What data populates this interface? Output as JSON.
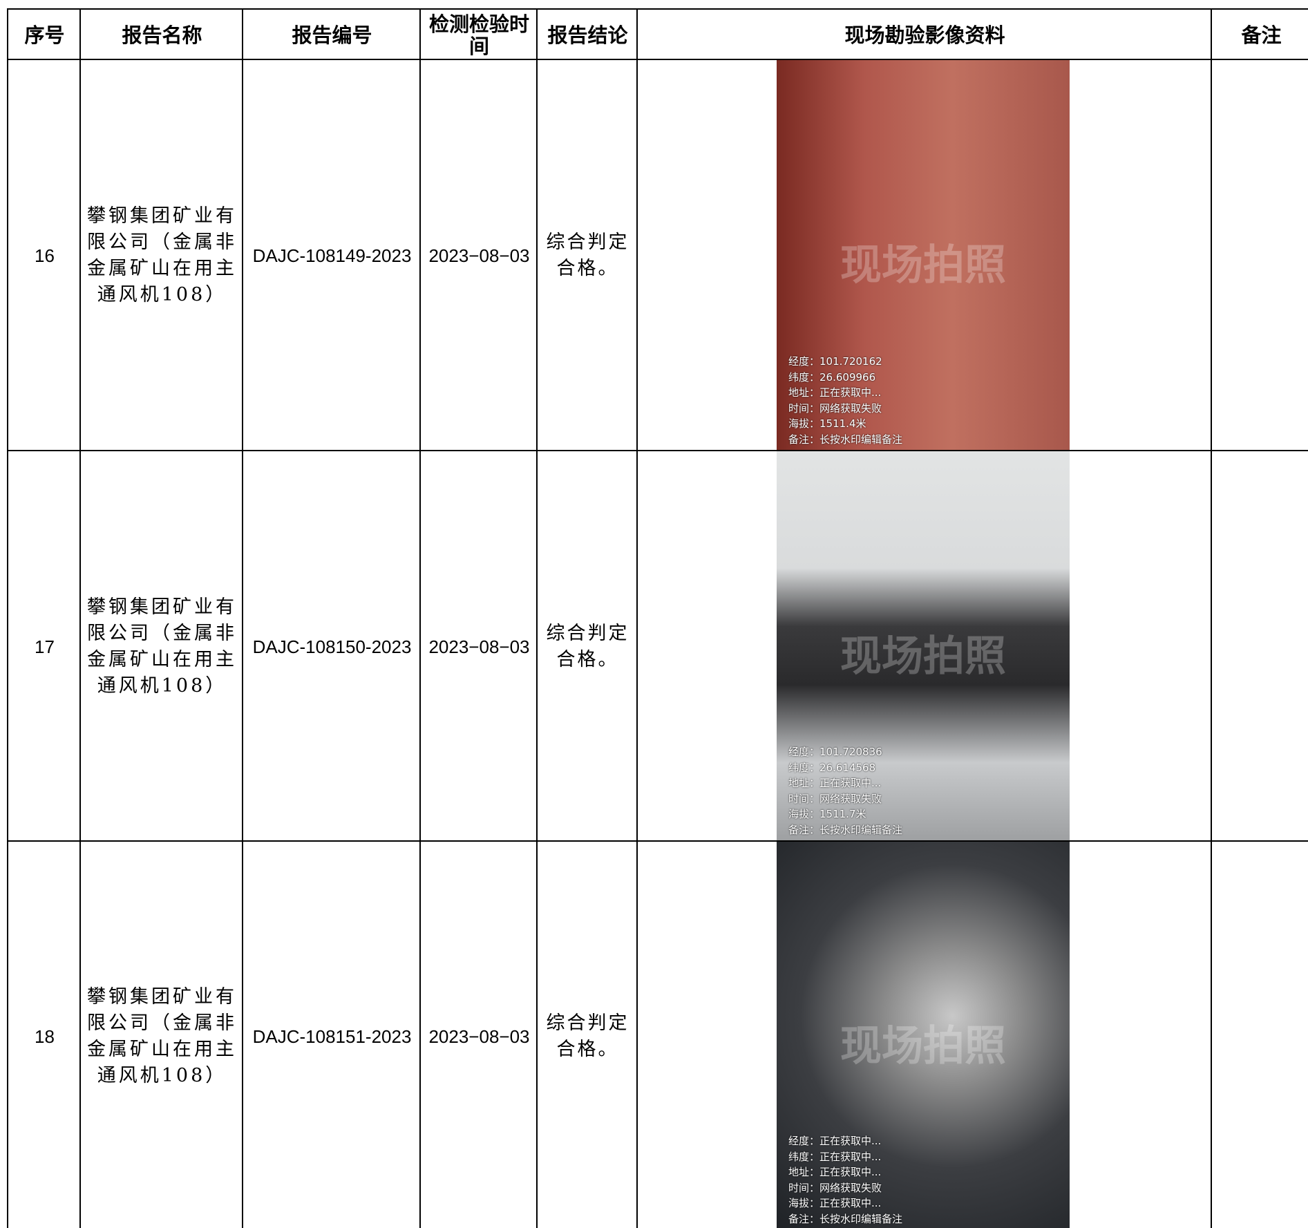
{
  "table": {
    "header": [
      "序号",
      "报告名称",
      "报告编号",
      "检测检验时间",
      "报告结论",
      "现场勘验影像资料",
      "备注"
    ],
    "rows": [
      {
        "cells": [
          "16",
          "攀钢集团矿业有限公司（金属非金属矿山在用主通风机108）",
          "DAJC-108149-2023",
          "2023−08−03",
          "综合判定合格。",
          "",
          ""
        ],
        "photo": {
          "watermark": "现场拍照",
          "lines": [
            "经度：101.720162",
            "纬度：26.609966",
            "地址：正在获取中...",
            "时间：网络获取失败",
            "海拔：1511.4米",
            "备注：长按水印编辑备注"
          ]
        }
      },
      {
        "cells": [
          "17",
          "攀钢集团矿业有限公司（金属非金属矿山在用主通风机108）",
          "DAJC-108150-2023",
          "2023−08−03",
          "综合判定合格。",
          "",
          ""
        ],
        "photo": {
          "watermark": "现场拍照",
          "lines": [
            "经度：101.720836",
            "纬度：26.614568",
            "地址：正在获取中...",
            "时间：网络获取失败",
            "海拔：1511.7米",
            "备注：长按水印编辑备注"
          ]
        }
      },
      {
        "cells": [
          "18",
          "攀钢集团矿业有限公司（金属非金属矿山在用主通风机108）",
          "DAJC-108151-2023",
          "2023−08−03",
          "综合判定合格。",
          "",
          ""
        ],
        "photo": {
          "watermark": "现场拍照",
          "lines": [
            "经度：正在获取中...",
            "纬度：正在获取中...",
            "地址：正在获取中...",
            "时间：网络获取失败",
            "海拔：正在获取中...",
            "备注：长按水印编辑备注"
          ]
        }
      }
    ]
  }
}
